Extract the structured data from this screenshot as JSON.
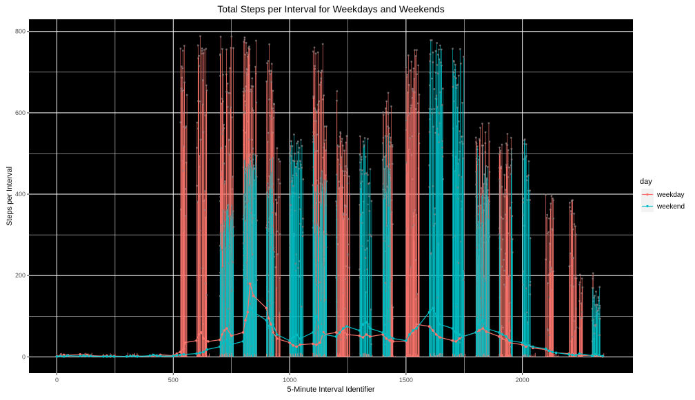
{
  "chart_data": {
    "type": "line",
    "title": "Total Steps per Interval for Weekdays and Weekends",
    "xlabel": "5-Minute Interval Identifier",
    "ylabel": "Steps per Interval",
    "xlim": [
      -120,
      2475
    ],
    "ylim": [
      -40,
      830
    ],
    "x_ticks": [
      0,
      500,
      1000,
      1500,
      2000
    ],
    "x_tick_labels": [
      "0",
      "500",
      "1000",
      "1500",
      "2000"
    ],
    "y_ticks": [
      0,
      200,
      400,
      600,
      800
    ],
    "y_tick_labels": [
      "0",
      "200",
      "400",
      "600",
      "800"
    ],
    "background": "#000000",
    "grid": true,
    "grid_color": "#ffffff",
    "legend": {
      "title": "day",
      "position": "right",
      "entries": [
        {
          "label": "weekday",
          "color": "#F8766D"
        },
        {
          "label": "weekend",
          "color": "#00BFC4"
        }
      ]
    },
    "series": [
      {
        "name": "weekday",
        "color": "#F8766D",
        "x": [
          0,
          15,
          30,
          45,
          100,
          115,
          130,
          145,
          200,
          215,
          230,
          245,
          300,
          315,
          330,
          345,
          400,
          415,
          430,
          445,
          500,
          515,
          530,
          545,
          550,
          600,
          610,
          620,
          630,
          650,
          700,
          710,
          720,
          730,
          750,
          800,
          810,
          820,
          830,
          845,
          900,
          910,
          920,
          930,
          945,
          1000,
          1015,
          1030,
          1045,
          1100,
          1115,
          1130,
          1145,
          1150,
          1200,
          1215,
          1230,
          1245,
          1300,
          1315,
          1330,
          1345,
          1400,
          1415,
          1430,
          1445,
          1500,
          1515,
          1530,
          1545,
          1600,
          1615,
          1630,
          1645,
          1700,
          1715,
          1730,
          1745,
          1800,
          1815,
          1830,
          1845,
          1900,
          1915,
          1930,
          1945,
          2000,
          2015,
          2030,
          2045,
          2100,
          2115,
          2130,
          2145,
          2200,
          2215,
          2230,
          2245,
          2300,
          2315,
          2330,
          2345
        ],
        "values": [
          2,
          3,
          5,
          4,
          6,
          4,
          5,
          3,
          2,
          3,
          1,
          2,
          1,
          2,
          3,
          2,
          2,
          4,
          3,
          5,
          3,
          8,
          12,
          20,
          35,
          40,
          55,
          60,
          45,
          38,
          42,
          55,
          65,
          70,
          52,
          60,
          90,
          110,
          180,
          150,
          120,
          95,
          80,
          60,
          45,
          35,
          28,
          25,
          30,
          32,
          30,
          35,
          60,
          55,
          60,
          58,
          65,
          55,
          52,
          48,
          55,
          50,
          55,
          45,
          40,
          38,
          38,
          55,
          60,
          80,
          75,
          65,
          55,
          48,
          40,
          38,
          45,
          50,
          60,
          65,
          70,
          62,
          50,
          45,
          40,
          35,
          30,
          25,
          28,
          22,
          18,
          15,
          12,
          10,
          8,
          6,
          5,
          3,
          4,
          3,
          2,
          1
        ]
      },
      {
        "name": "weekend",
        "color": "#00BFC4",
        "x": [
          0,
          15,
          30,
          45,
          100,
          115,
          130,
          145,
          200,
          215,
          230,
          245,
          300,
          315,
          330,
          345,
          400,
          415,
          430,
          445,
          500,
          515,
          530,
          545,
          600,
          615,
          630,
          645,
          700,
          715,
          730,
          745,
          800,
          815,
          830,
          845,
          900,
          915,
          930,
          945,
          1000,
          1015,
          1030,
          1045,
          1100,
          1115,
          1130,
          1145,
          1200,
          1215,
          1230,
          1245,
          1300,
          1315,
          1330,
          1345,
          1400,
          1415,
          1430,
          1445,
          1500,
          1515,
          1530,
          1545,
          1600,
          1615,
          1630,
          1645,
          1700,
          1715,
          1730,
          1745,
          1800,
          1815,
          1830,
          1845,
          1900,
          1915,
          1930,
          1945,
          2000,
          2015,
          2030,
          2045,
          2100,
          2115,
          2130,
          2145,
          2200,
          2215,
          2230,
          2245,
          2300,
          2315,
          2330,
          2345
        ],
        "values": [
          1,
          2,
          1,
          3,
          2,
          3,
          2,
          2,
          1,
          1,
          2,
          1,
          1,
          2,
          2,
          1,
          3,
          5,
          3,
          2,
          2,
          4,
          5,
          6,
          8,
          10,
          12,
          18,
          25,
          35,
          40,
          30,
          38,
          60,
          120,
          110,
          90,
          70,
          80,
          55,
          40,
          48,
          55,
          45,
          60,
          100,
          70,
          55,
          50,
          60,
          70,
          75,
          65,
          80,
          85,
          70,
          60,
          55,
          50,
          45,
          40,
          55,
          65,
          70,
          110,
          120,
          100,
          80,
          70,
          60,
          55,
          50,
          60,
          80,
          90,
          70,
          60,
          55,
          50,
          40,
          35,
          30,
          28,
          25,
          20,
          15,
          12,
          10,
          6,
          5,
          4,
          8,
          3,
          6,
          4,
          2
        ]
      }
    ],
    "annotation": "Overplotted daily step traces: spikes reach about 800 steps in weekday morning intervals (roughly 550–1100) and about 780 for weekends (roughly 1500–1750)."
  }
}
